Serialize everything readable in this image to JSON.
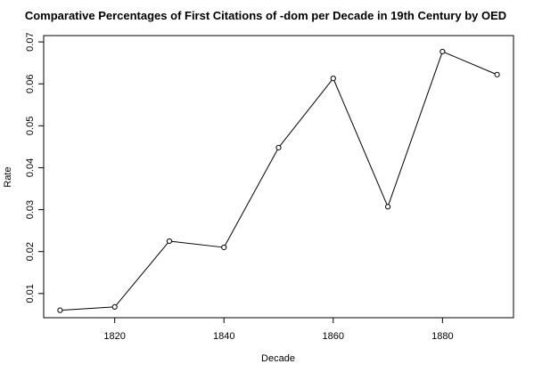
{
  "chart_data": {
    "type": "line",
    "title": "Comparative Percentages of First Citations of -dom per Decade in 19th Century by OED",
    "xlabel": "Decade",
    "ylabel": "Rate",
    "x": [
      1810,
      1820,
      1830,
      1840,
      1850,
      1860,
      1870,
      1880,
      1890
    ],
    "series": [
      {
        "values": [
          0.006,
          0.0068,
          0.0225,
          0.021,
          0.0448,
          0.0613,
          0.0307,
          0.0677,
          0.0622
        ]
      }
    ],
    "xticks": [
      1820,
      1840,
      1860,
      1880
    ],
    "yticks": [
      0.01,
      0.02,
      0.03,
      0.04,
      0.05,
      0.06,
      0.07
    ],
    "xtick_labels": [
      "1820",
      "1840",
      "1860",
      "1880"
    ],
    "ytick_labels": [
      "0.01",
      "0.02",
      "0.03",
      "0.04",
      "0.05",
      "0.06",
      "0.07"
    ],
    "xlim": [
      1807,
      1893
    ],
    "ylim": [
      0.00423,
      0.07151
    ],
    "grid": false,
    "markers": "open-circle",
    "line_color": "#000000"
  }
}
